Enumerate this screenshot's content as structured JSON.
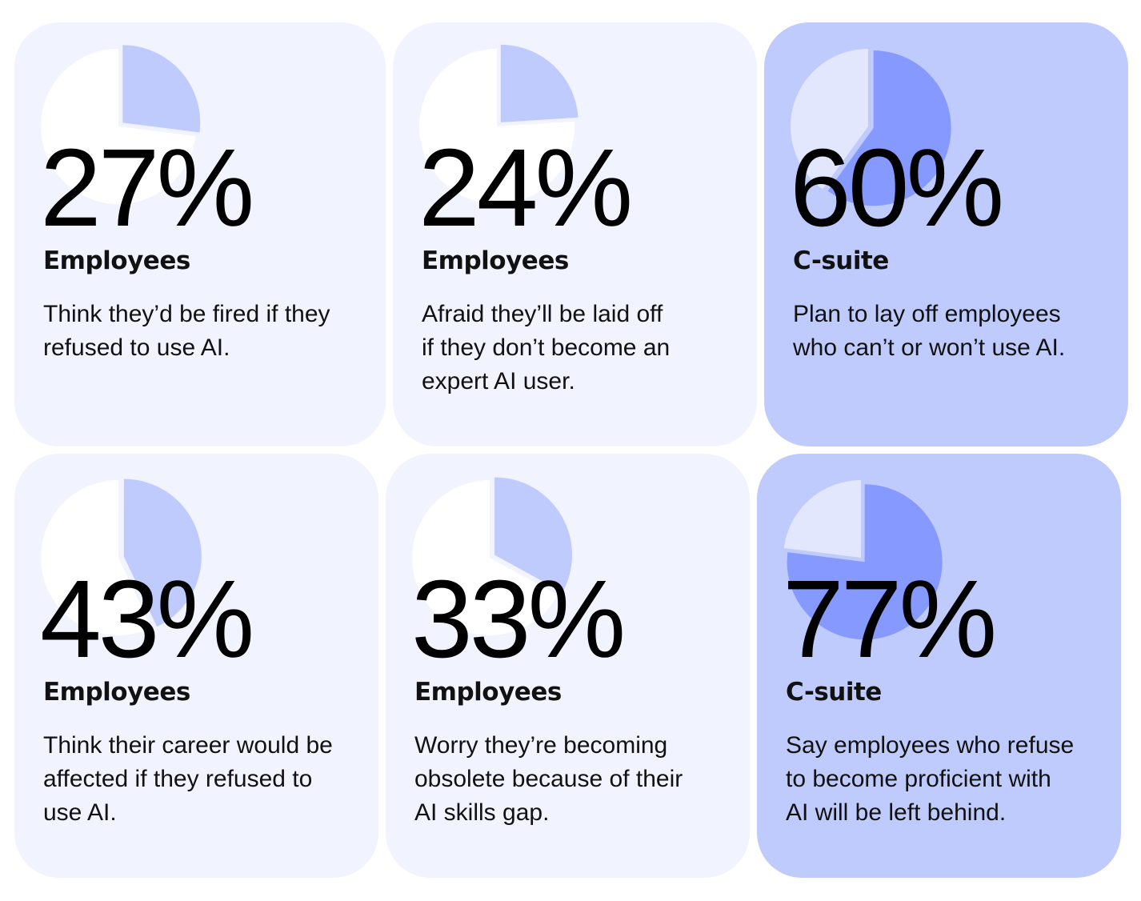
{
  "chart_data": [
    {
      "type": "pie",
      "value": 27,
      "label": "27%",
      "group": "Employees",
      "description": "Think they’d be fired if they refused to use AI.",
      "desc_lines": [
        "Think they’d be fired if they",
        "refused to use AI."
      ]
    },
    {
      "type": "pie",
      "value": 24,
      "label": "24%",
      "group": "Employees",
      "description": "Afraid they’ll be laid off if they don’t become an expert AI user.",
      "desc_lines": [
        "Afraid they’ll be laid off",
        "if they don’t become an",
        "expert AI user."
      ]
    },
    {
      "type": "pie",
      "value": 60,
      "label": "60%",
      "group": "C-suite",
      "description": "Plan to lay off employees who can’t or won’t use AI.",
      "desc_lines": [
        "Plan to lay off employees",
        "who can’t or won’t use AI."
      ]
    },
    {
      "type": "pie",
      "value": 43,
      "label": "43%",
      "group": "Employees",
      "description": "Think their career would be affected if they refused to use AI.",
      "desc_lines": [
        "Think their career would be",
        "affected if they refused to",
        "use AI."
      ]
    },
    {
      "type": "pie",
      "value": 33,
      "label": "33%",
      "group": "Employees",
      "description": "Worry they’re becoming obsolete because of their AI skills gap.",
      "desc_lines": [
        "Worry they’re becoming",
        "obsolete because of their",
        "AI skills gap."
      ]
    },
    {
      "type": "pie",
      "value": 77,
      "label": "77%",
      "group": "C-suite",
      "description": "Say employees who refuse to become proficient with AI will be left behind.",
      "desc_lines": [
        "Say employees who refuse",
        "to become proficient with",
        "AI will be left behind."
      ]
    }
  ],
  "colors": {
    "light_card": "#f1f4fe",
    "dark_card": "#c0cbfd",
    "light_pie_rest": "#ffffff",
    "light_pie_slice": "#c0cbfd",
    "dark_pie_rest": "#e2e7fe",
    "dark_pie_slice": "#8599ff"
  }
}
